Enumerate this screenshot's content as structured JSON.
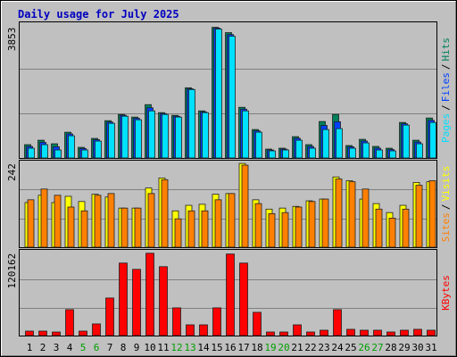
{
  "chart_data": [
    {
      "type": "bar",
      "title": "Daily usage for July 2025",
      "legend_separator": "/",
      "ylim": [
        0,
        4000
      ],
      "yticks": [
        3853
      ],
      "series": [
        {
          "name": "Hits",
          "color": "#00805c",
          "values": [
            393,
            524,
            419,
            760,
            314,
            577,
            1100,
            1284,
            1206,
            1573,
            1337,
            1258,
            2070,
            1389,
            3853,
            3696,
            1494,
            839,
            262,
            288,
            629,
            393,
            1075,
            1284,
            367,
            550,
            341,
            288,
            1048,
            524,
            1179
          ]
        },
        {
          "name": "Files",
          "color": "#0040ff",
          "values": [
            340,
            460,
            330,
            710,
            280,
            540,
            1060,
            1260,
            1170,
            1480,
            1310,
            1230,
            2040,
            1360,
            3830,
            3640,
            1440,
            800,
            236,
            262,
            580,
            340,
            960,
            1070,
            330,
            500,
            290,
            250,
            1010,
            470,
            1110
          ]
        },
        {
          "name": "Pages",
          "color": "#00e0ff",
          "values": [
            288,
            393,
            236,
            655,
            236,
            498,
            1022,
            1232,
            1127,
            1389,
            1284,
            1206,
            2018,
            1337,
            3800,
            3591,
            1389,
            760,
            210,
            236,
            524,
            288,
            839,
            865,
            288,
            445,
            236,
            210,
            970,
            419,
            1048
          ]
        }
      ]
    },
    {
      "type": "bar",
      "legend_separator": "/",
      "ylim": [
        0,
        250
      ],
      "yticks": [
        242
      ],
      "series": [
        {
          "name": "Visits",
          "color": "#ffff00",
          "values": [
            129,
            150,
            129,
            147,
            132,
            153,
            145,
            113,
            113,
            171,
            200,
            105,
            121,
            124,
            153,
            155,
            242,
            137,
            110,
            113,
            118,
            134,
            139,
            203,
            192,
            139,
            126,
            100,
            121,
            187,
            189
          ]
        },
        {
          "name": "Sites",
          "color": "#ff8000",
          "values": [
            137,
            168,
            150,
            116,
            105,
            150,
            155,
            113,
            113,
            155,
            195,
            82,
            105,
            105,
            137,
            155,
            237,
            126,
            97,
            100,
            116,
            132,
            139,
            197,
            189,
            168,
            110,
            84,
            110,
            179,
            192
          ]
        }
      ]
    },
    {
      "type": "bar",
      "ylim": [
        0,
        125000
      ],
      "yticks": [
        120162
      ],
      "categories": [
        "1",
        "2",
        "3",
        "4",
        "5",
        "6",
        "7",
        "8",
        "9",
        "10",
        "11",
        "12",
        "13",
        "14",
        "15",
        "16",
        "17",
        "18",
        "19",
        "20",
        "21",
        "22",
        "23",
        "24",
        "25",
        "26",
        "27",
        "28",
        "29",
        "30",
        "31"
      ],
      "category_colors": [
        "#000000",
        "#000000",
        "#000000",
        "#000000",
        "#00a000",
        "#00a000",
        "#000000",
        "#000000",
        "#000000",
        "#000000",
        "#000000",
        "#00a000",
        "#00a000",
        "#000000",
        "#000000",
        "#000000",
        "#000000",
        "#000000",
        "#00a000",
        "#00a000",
        "#000000",
        "#000000",
        "#000000",
        "#000000",
        "#000000",
        "#00a000",
        "#00a000",
        "#000000",
        "#000000",
        "#000000",
        "#000000"
      ],
      "series": [
        {
          "name": "KBytes",
          "color": "#ff0000",
          "values": [
            6530,
            6530,
            5220,
            37900,
            6530,
            17000,
            54850,
            105800,
            96640,
            120162,
            100550,
            40490,
            15670,
            15670,
            40490,
            119000,
            105800,
            33950,
            5220,
            5220,
            15670,
            5220,
            7840,
            37900,
            9140,
            7840,
            7840,
            5220,
            7840,
            9140,
            7840
          ]
        }
      ]
    }
  ]
}
